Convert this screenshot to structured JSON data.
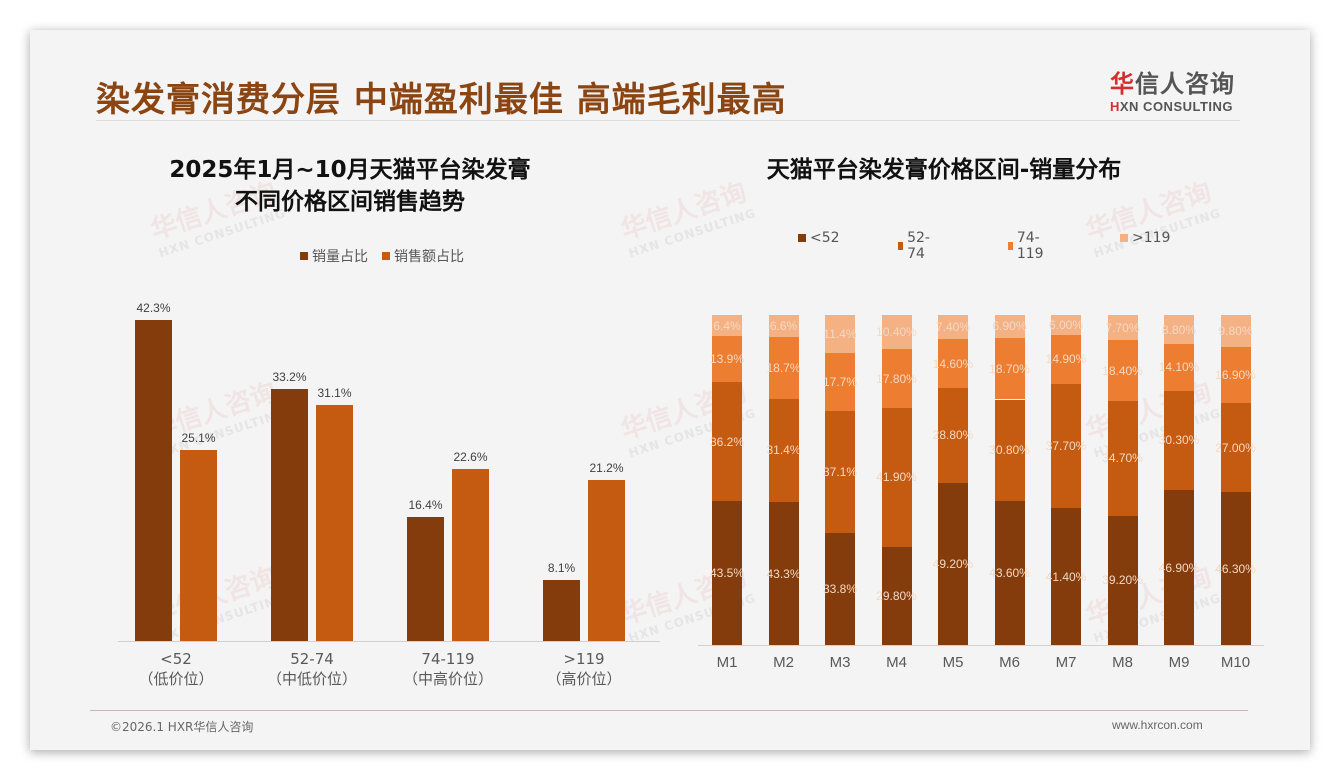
{
  "header": {
    "title": "染发膏消费分层 中端盈利最佳 高端毛利最高",
    "logo_cn_first": "华",
    "logo_cn_rest": "信人咨询",
    "logo_en_first": "H",
    "logo_en_rest": "XN CONSULTING"
  },
  "watermark": {
    "cn": "华信人咨询",
    "en": "HXN CONSULTING"
  },
  "footer": {
    "left": "©2026.1 HXR华信人咨询",
    "right": "www.hxrcon.com"
  },
  "colors": {
    "title": "#8b4513",
    "series_dark": "#843c0c",
    "series_mid": "#c55a11",
    "series_light": "#ed7d31",
    "series_lightest": "#f4b183"
  },
  "chart_data": [
    {
      "type": "bar",
      "title": "2025年1月~10月天猫平台染发膏",
      "subtitle": "不同价格区间销售趋势",
      "categories": [
        "<52",
        "52-74",
        "74-119",
        ">119"
      ],
      "category_sublabels": [
        "（低价位）",
        "（中低价位）",
        "（中高价位）",
        "（高价位）"
      ],
      "series": [
        {
          "name": "销量占比",
          "values": [
            42.3,
            33.2,
            16.4,
            8.1
          ],
          "labels": [
            "42.3%",
            "33.2%",
            "16.4%",
            "8.1%"
          ],
          "color": "#843c0c"
        },
        {
          "name": "销售额占比",
          "values": [
            25.1,
            31.1,
            22.6,
            21.2
          ],
          "labels": [
            "25.1%",
            "31.1%",
            "22.6%",
            "21.2%"
          ],
          "color": "#c55a11"
        }
      ],
      "xlabel": "",
      "ylabel": "",
      "ylim": [
        0,
        45
      ],
      "grid": false,
      "legend_position": "top"
    },
    {
      "type": "bar",
      "stacked": true,
      "normalized": true,
      "title": "天猫平台染发膏价格区间-销量分布",
      "categories": [
        "M1",
        "M2",
        "M3",
        "M4",
        "M5",
        "M6",
        "M7",
        "M8",
        "M9",
        "M10"
      ],
      "series": [
        {
          "name": "<52",
          "color": "#843c0c",
          "values": [
            43.5,
            43.3,
            33.8,
            29.8,
            49.2,
            43.6,
            41.4,
            39.2,
            46.9,
            46.3
          ],
          "labels": [
            "43.5%",
            "43.3%",
            "33.8%",
            "29.80%",
            "49.20%",
            "43.60%",
            "41.40%",
            "39.20%",
            "46.90%",
            "46.30%"
          ]
        },
        {
          "name": "52-74",
          "color": "#c55a11",
          "values": [
            36.2,
            31.4,
            37.1,
            41.9,
            28.8,
            30.8,
            37.7,
            34.7,
            30.3,
            27.0
          ],
          "labels": [
            "36.2%",
            "31.4%",
            "37.1%",
            "41.90%",
            "28.80%",
            "30.80%",
            "37.70%",
            "34.70%",
            "30.30%",
            "27.00%"
          ]
        },
        {
          "name": "74-119",
          "color": "#ed7d31",
          "values": [
            13.9,
            18.7,
            17.7,
            17.8,
            14.6,
            18.7,
            14.9,
            18.4,
            14.1,
            16.9
          ],
          "labels": [
            "13.9%",
            "18.7%",
            "17.7%",
            "17.80%",
            "14.60%",
            "18.70%",
            "14.90%",
            "18.40%",
            "14.10%",
            "16.90%"
          ]
        },
        {
          "name": ">119",
          "color": "#f4b183",
          "values": [
            6.4,
            6.6,
            11.4,
            10.4,
            7.4,
            6.9,
            6.0,
            7.7,
            8.8,
            9.8
          ],
          "labels": [
            "6.4%",
            "6.6%",
            "11.4%",
            "10.40%",
            "7.40%",
            "6.90%",
            "6.00%",
            "7.70%",
            "8.80%",
            "9.80%"
          ]
        }
      ],
      "xlabel": "",
      "ylabel": "",
      "ylim": [
        0,
        100
      ],
      "grid": false,
      "legend_position": "top"
    }
  ]
}
